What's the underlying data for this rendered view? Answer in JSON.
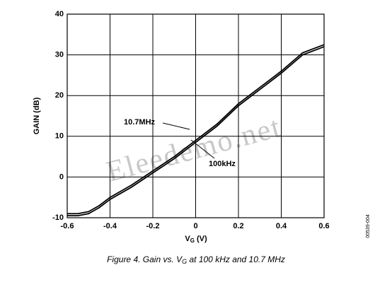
{
  "chart_data": {
    "type": "line",
    "y_label": "GAIN (dB)",
    "x_label_parts": [
      "V",
      "G",
      " (V)"
    ],
    "caption_parts": [
      "Figure 4. Gain vs. V",
      "G",
      " at 100 kHz and 10.7 MHz"
    ],
    "side_label": "00539-004",
    "watermark": "Eleedemo.net",
    "annotations": [
      "10.7MHz",
      "100kHz"
    ],
    "x": [
      -0.6,
      -0.55,
      -0.5,
      -0.45,
      -0.4,
      -0.3,
      -0.2,
      -0.1,
      0,
      0.1,
      0.2,
      0.3,
      0.4,
      0.5,
      0.6
    ],
    "series": [
      {
        "name": "100kHz",
        "color": "#000000",
        "values": [
          -9,
          -9,
          -8.5,
          -7,
          -5,
          -2,
          1.5,
          5,
          9,
          13,
          18,
          22,
          26,
          30.5,
          32.5
        ]
      },
      {
        "name": "10.7MHz",
        "color": "#000000",
        "values": [
          -9.5,
          -9.5,
          -9,
          -7.5,
          -5.5,
          -2.5,
          1,
          4.5,
          8.5,
          12.5,
          17.5,
          21.5,
          25.5,
          30,
          32
        ]
      }
    ],
    "xlim": [
      -0.6,
      0.6
    ],
    "ylim": [
      -10,
      40
    ],
    "xticks": [
      -0.6,
      -0.4,
      -0.2,
      0,
      0.2,
      0.4,
      0.6
    ],
    "yticks": [
      -10,
      0,
      10,
      20,
      30,
      40
    ],
    "grid": true
  }
}
